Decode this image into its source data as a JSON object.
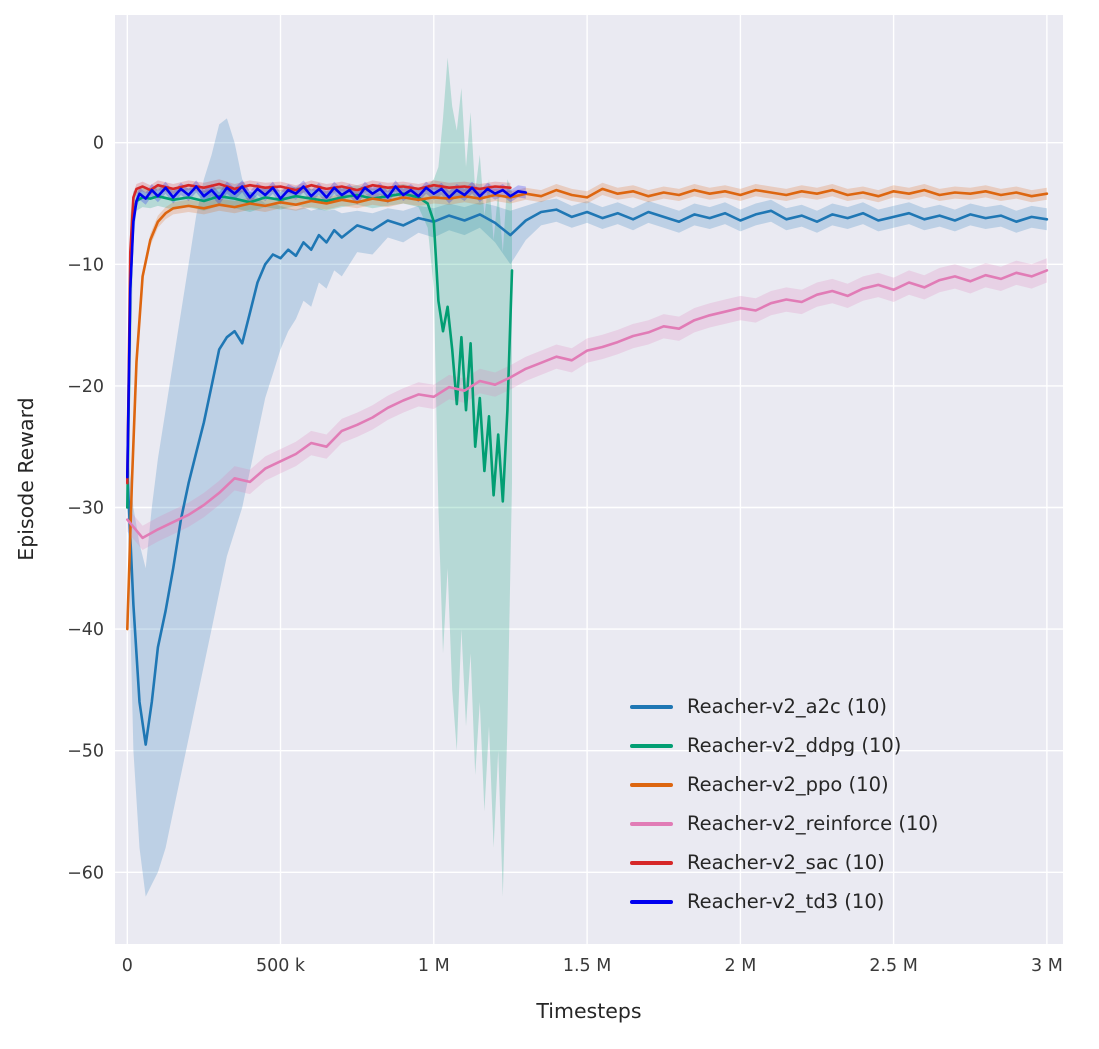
{
  "figure": {
    "background": "#ffffff",
    "plot_background": "#eaeaf2",
    "grid_color": "#ffffff",
    "text_color": "#262626",
    "tick_color": "#3a3a3a"
  },
  "chart_data": {
    "type": "line",
    "title": "",
    "xlabel": "Timesteps",
    "ylabel": "Episode Reward",
    "grid": true,
    "legend_position": "lower right",
    "x_scale": 1000,
    "xlim": [
      -40000,
      3052500
    ],
    "ylim": [
      -65.9,
      10.5
    ],
    "x_ticks": [
      {
        "value": 0,
        "label": "0"
      },
      {
        "value": 500000,
        "label": "500 k"
      },
      {
        "value": 1000000,
        "label": "1 M"
      },
      {
        "value": 1500000,
        "label": "1.5 M"
      },
      {
        "value": 2000000,
        "label": "2 M"
      },
      {
        "value": 2500000,
        "label": "2.5 M"
      },
      {
        "value": 3000000,
        "label": "3 M"
      }
    ],
    "y_ticks": [
      {
        "value": 0,
        "label": "0"
      },
      {
        "value": -10,
        "label": "−10"
      },
      {
        "value": -20,
        "label": "−20"
      },
      {
        "value": -30,
        "label": "−30"
      },
      {
        "value": -40,
        "label": "−40"
      },
      {
        "value": -50,
        "label": "−50"
      },
      {
        "value": -60,
        "label": "−60"
      }
    ],
    "series": [
      {
        "name": "Reacher-v2_a2c (10)",
        "color": "#1f77b4",
        "x": [
          0,
          20,
          40,
          60,
          80,
          100,
          125,
          150,
          175,
          200,
          225,
          250,
          275,
          300,
          325,
          350,
          375,
          400,
          425,
          450,
          475,
          500,
          525,
          550,
          575,
          600,
          625,
          650,
          675,
          700,
          750,
          800,
          850,
          900,
          950,
          1000,
          1050,
          1100,
          1150,
          1200,
          1250,
          1300,
          1350,
          1400,
          1450,
          1500,
          1550,
          1600,
          1650,
          1700,
          1750,
          1800,
          1850,
          1900,
          1950,
          2000,
          2050,
          2100,
          2150,
          2200,
          2250,
          2300,
          2350,
          2400,
          2450,
          2500,
          2550,
          2600,
          2650,
          2700,
          2750,
          2800,
          2850,
          2900,
          2950,
          3000
        ],
        "y": [
          -27,
          -38,
          -46,
          -49.5,
          -46,
          -41.5,
          -38.5,
          -35,
          -31,
          -28,
          -25.5,
          -23,
          -20,
          -17,
          -16,
          -15.5,
          -16.5,
          -14,
          -11.5,
          -10,
          -9.2,
          -9.5,
          -8.8,
          -9.3,
          -8.2,
          -8.8,
          -7.6,
          -8.2,
          -7.2,
          -7.8,
          -6.8,
          -7.2,
          -6.4,
          -6.8,
          -6.2,
          -6.5,
          -6,
          -6.4,
          -5.9,
          -6.6,
          -7.6,
          -6.4,
          -5.7,
          -5.5,
          -6.1,
          -5.7,
          -6.2,
          -5.8,
          -6.3,
          -5.7,
          -6.1,
          -6.5,
          -5.9,
          -6.2,
          -5.8,
          -6.4,
          -5.9,
          -5.6,
          -6.3,
          -6,
          -6.5,
          -5.9,
          -6.2,
          -5.8,
          -6.4,
          -6.1,
          -5.8,
          -6.3,
          -6,
          -6.4,
          -5.9,
          -6.2,
          -6,
          -6.5,
          -6.1,
          -6.3
        ],
        "band": {
          "lo": [
            -29,
            -50,
            -58,
            -62,
            -61,
            -60,
            -58,
            -55,
            -52,
            -49,
            -46,
            -43,
            -40,
            -37,
            -34,
            -32,
            -30,
            -27,
            -24,
            -21,
            -19,
            -17,
            -15.5,
            -14.5,
            -13,
            -13.5,
            -11.5,
            -12,
            -10.5,
            -11,
            -9,
            -9.2,
            -7.8,
            -8.2,
            -7.4,
            -7.8,
            -7.2,
            -7.6,
            -7,
            -8.2,
            -10,
            -8,
            -6.8,
            -6.5,
            -7,
            -6.6,
            -7.1,
            -6.7,
            -7.2,
            -6.6,
            -7,
            -7.4,
            -6.8,
            -7.1,
            -6.7,
            -7.3,
            -6.8,
            -6.5,
            -7.2,
            -6.9,
            -7.4,
            -6.8,
            -7.1,
            -6.7,
            -7.3,
            -7,
            -6.7,
            -7.2,
            -6.9,
            -7.3,
            -6.8,
            -7.1,
            -6.9,
            -7.4,
            -7,
            -7.2
          ],
          "hi": [
            -25,
            -30,
            -33,
            -35,
            -30,
            -26,
            -22,
            -18,
            -14,
            -10,
            -6,
            -3,
            -1,
            1.5,
            2,
            0,
            -3,
            -4,
            -4.5,
            -5,
            -5,
            -5.2,
            -5.4,
            -5.5,
            -5.3,
            -5.6,
            -5.4,
            -5.6,
            -5.5,
            -5.8,
            -5.6,
            -5.8,
            -5.4,
            -5.6,
            -5.2,
            -5.4,
            -5,
            -5.3,
            -4.9,
            -5.2,
            -5.6,
            -5.2,
            -4.8,
            -4.6,
            -5.2,
            -4.8,
            -5.3,
            -4.9,
            -5.4,
            -4.8,
            -5.2,
            -5.6,
            -5,
            -5.3,
            -4.9,
            -5.5,
            -5,
            -4.7,
            -5.4,
            -5.1,
            -5.6,
            -5,
            -5.3,
            -4.9,
            -5.5,
            -5.2,
            -4.9,
            -5.4,
            -5.1,
            -5.5,
            -5,
            -5.3,
            -5.1,
            -5.6,
            -5.2,
            -5.4
          ]
        }
      },
      {
        "name": "Reacher-v2_ddpg (10)",
        "color": "#029e73",
        "x": [
          0,
          10,
          20,
          30,
          50,
          75,
          100,
          150,
          200,
          250,
          300,
          350,
          400,
          450,
          500,
          550,
          600,
          650,
          700,
          750,
          800,
          850,
          900,
          950,
          980,
          1000,
          1015,
          1030,
          1045,
          1060,
          1075,
          1090,
          1105,
          1120,
          1135,
          1150,
          1165,
          1180,
          1195,
          1210,
          1225,
          1240,
          1255
        ],
        "y": [
          -30,
          -12,
          -6,
          -4.8,
          -4.5,
          -4.6,
          -4.4,
          -4.7,
          -4.5,
          -4.8,
          -4.4,
          -4.6,
          -4.9,
          -4.5,
          -4.7,
          -4.4,
          -4.6,
          -4.8,
          -4.5,
          -4.3,
          -4.6,
          -4.4,
          -4.2,
          -4.5,
          -5,
          -6.5,
          -13,
          -15.5,
          -13.5,
          -17,
          -21.5,
          -16,
          -22,
          -16.5,
          -25,
          -21,
          -27,
          -22.5,
          -29,
          -24,
          -29.5,
          -22,
          -10.5
        ],
        "band": {
          "lo": [
            -32,
            -20,
            -8,
            -5.6,
            -5.3,
            -5.4,
            -5.2,
            -5.5,
            -5.3,
            -5.6,
            -5.2,
            -5.4,
            -5.7,
            -5.3,
            -5.5,
            -5.2,
            -5.4,
            -5.6,
            -5.3,
            -5.1,
            -5.4,
            -5.2,
            -5,
            -5.3,
            -7,
            -12,
            -30,
            -42,
            -35,
            -45,
            -50,
            -40,
            -48,
            -42,
            -52,
            -46,
            -55,
            -48,
            -58,
            -50,
            -62,
            -48,
            -28
          ],
          "hi": [
            -28,
            -6,
            -4,
            -4,
            -3.7,
            -3.8,
            -3.6,
            -3.9,
            -3.7,
            -4,
            -3.6,
            -3.8,
            -4.1,
            -3.7,
            -3.9,
            -3.6,
            -3.8,
            -4,
            -3.7,
            -3.5,
            -3.8,
            -3.6,
            -3.4,
            -3.7,
            -3.5,
            -3,
            -2,
            2,
            7,
            3,
            1,
            4.5,
            -2,
            2.5,
            -4,
            -1,
            -6,
            -3,
            -8,
            -4,
            -9,
            -3,
            -4
          ]
        }
      },
      {
        "name": "Reacher-v2_ppo (10)",
        "color": "#dd6610",
        "x": [
          0,
          15,
          30,
          50,
          75,
          100,
          125,
          150,
          200,
          250,
          300,
          350,
          400,
          450,
          500,
          550,
          600,
          650,
          700,
          750,
          800,
          850,
          900,
          950,
          1000,
          1050,
          1100,
          1150,
          1200,
          1250,
          1300,
          1350,
          1400,
          1450,
          1500,
          1550,
          1600,
          1650,
          1700,
          1750,
          1800,
          1850,
          1900,
          1950,
          2000,
          2050,
          2100,
          2150,
          2200,
          2250,
          2300,
          2350,
          2400,
          2450,
          2500,
          2550,
          2600,
          2650,
          2700,
          2750,
          2800,
          2850,
          2900,
          2950,
          3000
        ],
        "y": [
          -40,
          -28,
          -18,
          -11,
          -8,
          -6.5,
          -5.8,
          -5.4,
          -5.2,
          -5.4,
          -5.1,
          -5.3,
          -5,
          -5.2,
          -4.9,
          -5.1,
          -4.8,
          -5,
          -4.7,
          -4.9,
          -4.6,
          -4.8,
          -4.5,
          -4.7,
          -4.5,
          -4.6,
          -4.4,
          -4.6,
          -4.3,
          -4.5,
          -4.2,
          -4.4,
          -3.9,
          -4.3,
          -4.5,
          -3.8,
          -4.2,
          -4,
          -4.4,
          -4.1,
          -4.3,
          -3.9,
          -4.2,
          -4,
          -4.3,
          -3.9,
          -4.1,
          -4.3,
          -4,
          -4.2,
          -3.9,
          -4.3,
          -4.1,
          -4.4,
          -4,
          -4.2,
          -3.9,
          -4.3,
          -4.1,
          -4.2,
          -4,
          -4.3,
          -4.1,
          -4.4,
          -4.2
        ],
        "band": {
          "delta": 0.5
        }
      },
      {
        "name": "Reacher-v2_reinforce (10)",
        "color": "#e17cb6",
        "x": [
          0,
          50,
          100,
          150,
          200,
          250,
          300,
          350,
          400,
          450,
          500,
          550,
          600,
          650,
          700,
          750,
          800,
          850,
          900,
          950,
          1000,
          1050,
          1100,
          1150,
          1200,
          1250,
          1300,
          1350,
          1400,
          1450,
          1500,
          1550,
          1600,
          1650,
          1700,
          1750,
          1800,
          1850,
          1900,
          1950,
          2000,
          2050,
          2100,
          2150,
          2200,
          2250,
          2300,
          2350,
          2400,
          2450,
          2500,
          2550,
          2600,
          2650,
          2700,
          2750,
          2800,
          2850,
          2900,
          2950,
          3000
        ],
        "y": [
          -31,
          -32.5,
          -31.8,
          -31.2,
          -30.6,
          -29.8,
          -28.8,
          -27.6,
          -27.9,
          -26.8,
          -26.2,
          -25.6,
          -24.7,
          -25,
          -23.7,
          -23.2,
          -22.6,
          -21.8,
          -21.2,
          -20.7,
          -20.9,
          -20.1,
          -20.4,
          -19.6,
          -19.9,
          -19.3,
          -18.6,
          -18.1,
          -17.6,
          -17.9,
          -17.1,
          -16.8,
          -16.4,
          -15.9,
          -15.6,
          -15.1,
          -15.3,
          -14.6,
          -14.2,
          -13.9,
          -13.6,
          -13.8,
          -13.2,
          -12.9,
          -13.1,
          -12.5,
          -12.2,
          -12.6,
          -12,
          -11.7,
          -12.1,
          -11.5,
          -11.9,
          -11.3,
          -11,
          -11.4,
          -10.9,
          -11.2,
          -10.7,
          -11,
          -10.5
        ],
        "band": {
          "delta": 1.0
        }
      },
      {
        "name": "Reacher-v2_sac (10)",
        "color": "#d62728",
        "x": [
          0,
          10,
          20,
          30,
          50,
          75,
          100,
          150,
          200,
          250,
          300,
          350,
          400,
          450,
          500,
          550,
          600,
          650,
          700,
          750,
          800,
          850,
          900,
          950,
          1000,
          1050,
          1100,
          1150,
          1200,
          1250
        ],
        "y": [
          -28,
          -9,
          -4.5,
          -3.8,
          -3.6,
          -3.9,
          -3.5,
          -3.8,
          -3.5,
          -3.7,
          -3.4,
          -3.8,
          -3.5,
          -3.7,
          -3.6,
          -3.9,
          -3.5,
          -3.8,
          -3.6,
          -3.9,
          -3.5,
          -3.7,
          -3.6,
          -3.8,
          -3.5,
          -3.7,
          -3.6,
          -3.8,
          -3.6,
          -3.7
        ],
        "band": {
          "delta": 0.4
        }
      },
      {
        "name": "Reacher-v2_td3 (10)",
        "color": "#0000f0",
        "x": [
          0,
          10,
          20,
          30,
          40,
          60,
          80,
          100,
          125,
          150,
          175,
          200,
          225,
          250,
          275,
          300,
          325,
          350,
          375,
          400,
          425,
          450,
          475,
          500,
          525,
          550,
          575,
          600,
          625,
          650,
          675,
          700,
          725,
          750,
          775,
          800,
          825,
          850,
          875,
          900,
          925,
          950,
          975,
          1000,
          1025,
          1050,
          1075,
          1100,
          1125,
          1150,
          1175,
          1200,
          1225,
          1250,
          1275,
          1300
        ],
        "y": [
          -27.5,
          -12,
          -6.5,
          -4.8,
          -4.2,
          -4.6,
          -3.9,
          -4.4,
          -3.7,
          -4.5,
          -3.8,
          -4.3,
          -3.6,
          -4.4,
          -3.9,
          -4.6,
          -3.7,
          -4.2,
          -3.6,
          -4.5,
          -3.8,
          -4.3,
          -3.7,
          -4.6,
          -3.9,
          -4.2,
          -3.6,
          -4.4,
          -3.8,
          -4.5,
          -3.7,
          -4.3,
          -3.9,
          -4.6,
          -3.7,
          -4.2,
          -3.8,
          -4.5,
          -3.6,
          -4.3,
          -3.9,
          -4.4,
          -3.7,
          -4.2,
          -3.8,
          -4.5,
          -3.9,
          -4.3,
          -3.7,
          -4.4,
          -3.8,
          -4.2,
          -3.9,
          -4.4,
          -4,
          -4.1
        ],
        "band": {
          "delta": 0.5
        }
      }
    ]
  }
}
